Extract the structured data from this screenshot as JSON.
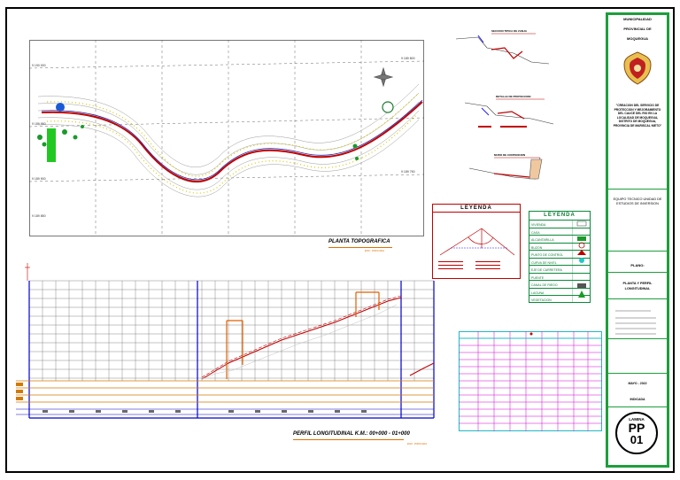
{
  "plan": {
    "title": "PLANTA TOPOGRAFICA",
    "scale": "ESC: INDICADA",
    "grid_labels": [
      "9 190 000",
      "9 189 950",
      "9 189 900",
      "9 189 850",
      "9 189 800",
      "9 189 750"
    ]
  },
  "profile": {
    "title": "PERFIL LONGITUDINAL  K.M.: 00+000 - 01+000",
    "scale": "ESC: INDICADA"
  },
  "sections": {
    "titles": [
      "SECCION TIPICA DE ZANJA",
      "DETALLE DE PROTECCION",
      "MURO DE CONTENCION"
    ]
  },
  "legend_diagram": {
    "title": "LEYENDA"
  },
  "legend_table": {
    "title": "LEYENDA",
    "rows": [
      "VIVIENDA",
      "CASA",
      "ALCANTARILLA",
      "BUZON",
      "PUNTO DE CONTROL",
      "CURVA DE NIVEL",
      "EJE DE CARRETERA",
      "PUENTE",
      "CANAL DE RIEGO",
      "LAGUNA",
      "VEGETACION"
    ]
  },
  "title_block": {
    "municipality": [
      "MUNICIPALIDAD",
      "PROVINCIAL DE",
      "MOQUEGUA"
    ],
    "project": "\"CREACION DEL SERVICIO DE PROTECCION Y MEJORAMIENTO DEL CAUCE DEL RIO EN LA LOCALIDAD DE MOQUEGUA, DISTRITO DE MOQUEGUA, PROVINCIA DE MARISCAL NIETO\"",
    "team": "EQUIPO TECNICO UNIDAD DE ESTUDIOS DE INVERSION",
    "field_label": "PLANO:",
    "plan_name": "PLANTA Y PERFIL LONGITUDINAL",
    "date": "MAYO - 2022",
    "scale": "INDICADA",
    "sheet_label": "LAMINA",
    "sheet_code": "PP",
    "sheet_num": "01"
  },
  "colors": {
    "frame": "#000000",
    "title_block_green": "#1e9e3c",
    "profile_blue": "#0000cc",
    "grid_magenta": "#d400d4"
  }
}
